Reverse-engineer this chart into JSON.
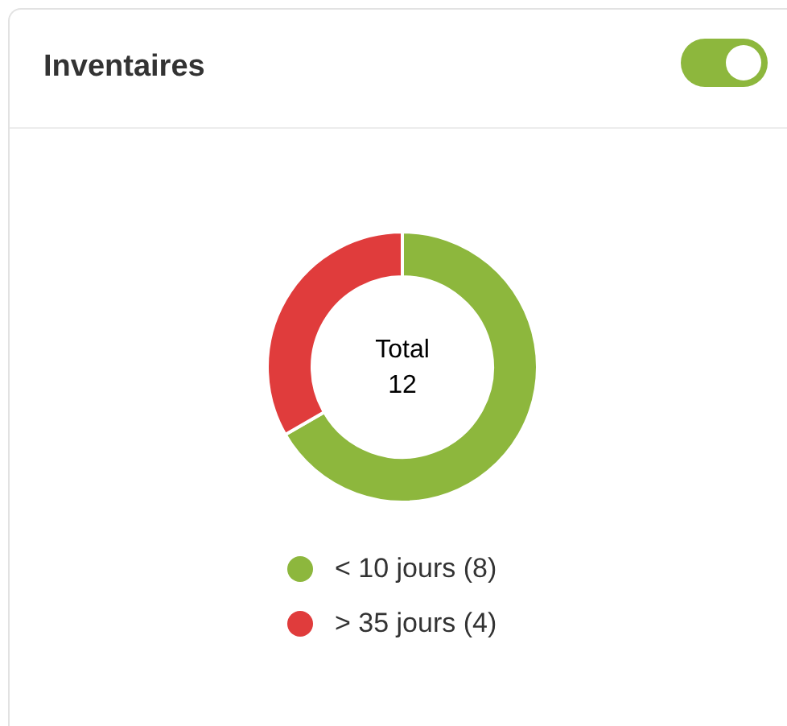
{
  "chart_data": {
    "type": "donut",
    "title": "Inventaires",
    "categories": [
      "< 10 jours (8)",
      "> 35 jours (4)"
    ],
    "values": [
      8,
      4
    ],
    "colors": [
      "#8db73d",
      "#e03c3c"
    ],
    "legend": "bottom",
    "annotations": [
      "Total",
      "12"
    ]
  }
}
